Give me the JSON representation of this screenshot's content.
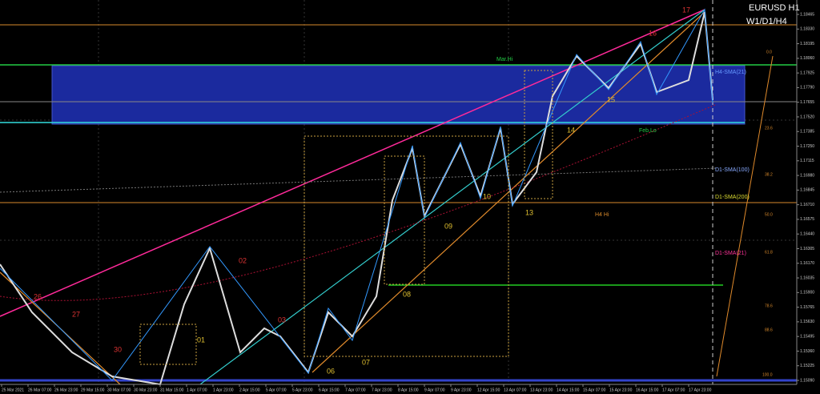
{
  "header": {
    "symbol": "EURUSD H1",
    "timeframes": "W1/D1/H4"
  },
  "levels": [
    "Mar.Hi",
    "Feb.Lo",
    "H4-SMA(21)",
    "D1-SMA(100)",
    "D1-SMA(200)",
    "D1-SMA(21)",
    "H4 Hi"
  ],
  "waves": [
    "17",
    "16",
    "15",
    "14",
    "13",
    "10",
    "09",
    "08",
    "07",
    "06",
    "03",
    "02",
    "01",
    "26",
    "27",
    "30"
  ],
  "fib": [
    "0.0",
    "23.6",
    "38.2",
    "50.0",
    "61.8",
    "78.6",
    "88.6",
    "100.0"
  ],
  "price_axis": [
    "1.18465",
    "1.18330",
    "1.18195",
    "1.18060",
    "1.17925",
    "1.17790",
    "1.17655",
    "1.17520",
    "1.17385",
    "1.17250",
    "1.17115",
    "1.16980",
    "1.16845",
    "1.16710",
    "1.16575",
    "1.16440",
    "1.16305",
    "1.16170",
    "1.16035",
    "1.15900",
    "1.15765",
    "1.15630",
    "1.15495",
    "1.15360",
    "1.15225",
    "1.15090"
  ],
  "time_axis": [
    "25 Mar 2021",
    "26 Mar 07:00",
    "26 Mar 23:00",
    "29 Mar 15:00",
    "30 Mar 07:00",
    "30 Mar 23:00",
    "31 Mar 15:00",
    "1 Apr 07:00",
    "1 Apr 23:00",
    "2 Apr 15:00",
    "5 Apr 07:00",
    "5 Apr 23:00",
    "6 Apr 15:00",
    "7 Apr 07:00",
    "7 Apr 23:00",
    "8 Apr 15:00",
    "9 Apr 07:00",
    "9 Apr 23:00",
    "12 Apr 15:00",
    "13 Apr 07:00",
    "13 Apr 23:00",
    "14 Apr 15:00",
    "15 Apr 07:00",
    "15 Apr 23:00",
    "16 Apr 15:00",
    "17 Apr 07:00",
    "17 Apr 23:00"
  ]
}
